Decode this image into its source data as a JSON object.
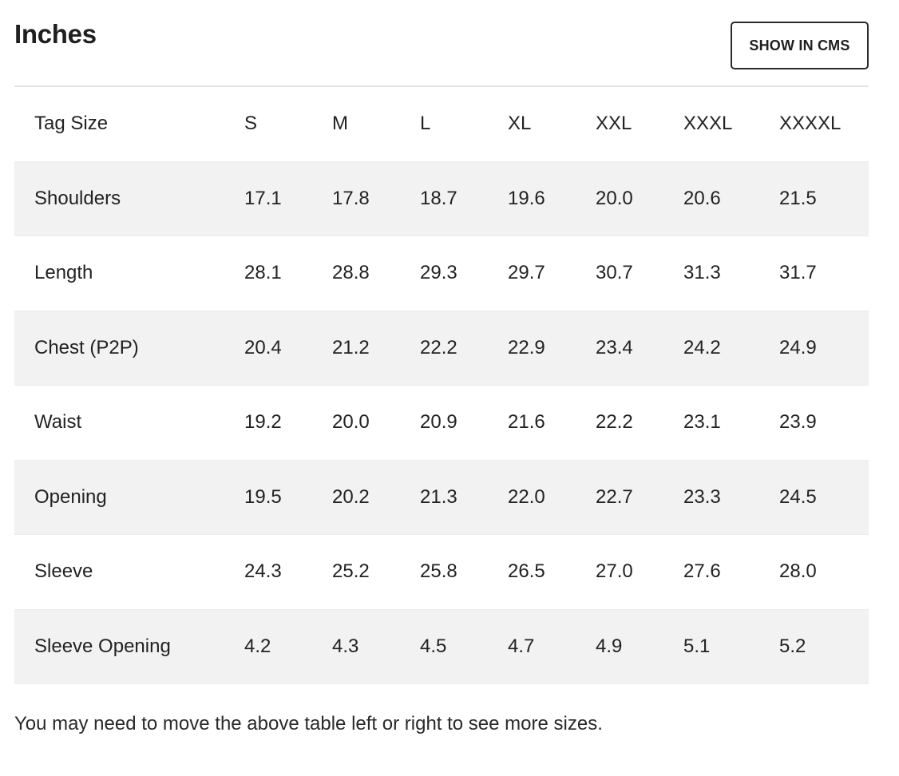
{
  "title": "Inches",
  "cms_button_label": "SHOW IN CMS",
  "table": {
    "header": [
      "Tag Size",
      "S",
      "M",
      "L",
      "XL",
      "XXL",
      "XXXL",
      "XXXXL"
    ],
    "rows": [
      [
        "Shoulders",
        "17.1",
        "17.8",
        "18.7",
        "19.6",
        "20.0",
        "20.6",
        "21.5"
      ],
      [
        "Length",
        "28.1",
        "28.8",
        "29.3",
        "29.7",
        "30.7",
        "31.3",
        "31.7"
      ],
      [
        "Chest (P2P)",
        "20.4",
        "21.2",
        "22.2",
        "22.9",
        "23.4",
        "24.2",
        "24.9"
      ],
      [
        "Waist",
        "19.2",
        "20.0",
        "20.9",
        "21.6",
        "22.2",
        "23.1",
        "23.9"
      ],
      [
        "Opening",
        "19.5",
        "20.2",
        "21.3",
        "22.0",
        "22.7",
        "23.3",
        "24.5"
      ],
      [
        "Sleeve",
        "24.3",
        "25.2",
        "25.8",
        "26.5",
        "27.0",
        "27.6",
        "28.0"
      ],
      [
        "Sleeve Opening",
        "4.2",
        "4.3",
        "4.5",
        "4.7",
        "4.9",
        "5.1",
        "5.2"
      ]
    ]
  },
  "note": "You may need to move the above table left or right to see more sizes."
}
